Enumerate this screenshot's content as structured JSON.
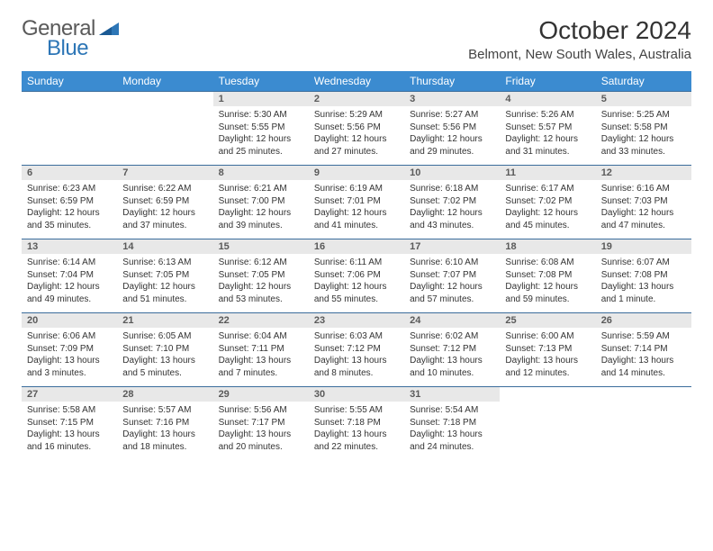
{
  "brand": {
    "general": "General",
    "blue": "Blue"
  },
  "header": {
    "title": "October 2024",
    "location": "Belmont, New South Wales, Australia"
  },
  "colors": {
    "header_bg": "#3b8bd0",
    "header_text": "#ffffff",
    "daynum_bg": "#e8e8e8",
    "daynum_text": "#5a5a5a",
    "row_border": "#3b6d9c",
    "logo_gray": "#5a5a5a",
    "logo_blue": "#2d76b6",
    "text": "#333333",
    "background": "#ffffff"
  },
  "typography": {
    "title_fontsize": 28,
    "location_fontsize": 15,
    "th_fontsize": 12,
    "daynum_fontsize": 11,
    "cell_fontsize": 10,
    "logo_fontsize": 24
  },
  "days": [
    "Sunday",
    "Monday",
    "Tuesday",
    "Wednesday",
    "Thursday",
    "Friday",
    "Saturday"
  ],
  "weeks": [
    [
      null,
      null,
      {
        "n": "1",
        "sr": "Sunrise: 5:30 AM",
        "ss": "Sunset: 5:55 PM",
        "dl1": "Daylight: 12 hours",
        "dl2": "and 25 minutes."
      },
      {
        "n": "2",
        "sr": "Sunrise: 5:29 AM",
        "ss": "Sunset: 5:56 PM",
        "dl1": "Daylight: 12 hours",
        "dl2": "and 27 minutes."
      },
      {
        "n": "3",
        "sr": "Sunrise: 5:27 AM",
        "ss": "Sunset: 5:56 PM",
        "dl1": "Daylight: 12 hours",
        "dl2": "and 29 minutes."
      },
      {
        "n": "4",
        "sr": "Sunrise: 5:26 AM",
        "ss": "Sunset: 5:57 PM",
        "dl1": "Daylight: 12 hours",
        "dl2": "and 31 minutes."
      },
      {
        "n": "5",
        "sr": "Sunrise: 5:25 AM",
        "ss": "Sunset: 5:58 PM",
        "dl1": "Daylight: 12 hours",
        "dl2": "and 33 minutes."
      }
    ],
    [
      {
        "n": "6",
        "sr": "Sunrise: 6:23 AM",
        "ss": "Sunset: 6:59 PM",
        "dl1": "Daylight: 12 hours",
        "dl2": "and 35 minutes."
      },
      {
        "n": "7",
        "sr": "Sunrise: 6:22 AM",
        "ss": "Sunset: 6:59 PM",
        "dl1": "Daylight: 12 hours",
        "dl2": "and 37 minutes."
      },
      {
        "n": "8",
        "sr": "Sunrise: 6:21 AM",
        "ss": "Sunset: 7:00 PM",
        "dl1": "Daylight: 12 hours",
        "dl2": "and 39 minutes."
      },
      {
        "n": "9",
        "sr": "Sunrise: 6:19 AM",
        "ss": "Sunset: 7:01 PM",
        "dl1": "Daylight: 12 hours",
        "dl2": "and 41 minutes."
      },
      {
        "n": "10",
        "sr": "Sunrise: 6:18 AM",
        "ss": "Sunset: 7:02 PM",
        "dl1": "Daylight: 12 hours",
        "dl2": "and 43 minutes."
      },
      {
        "n": "11",
        "sr": "Sunrise: 6:17 AM",
        "ss": "Sunset: 7:02 PM",
        "dl1": "Daylight: 12 hours",
        "dl2": "and 45 minutes."
      },
      {
        "n": "12",
        "sr": "Sunrise: 6:16 AM",
        "ss": "Sunset: 7:03 PM",
        "dl1": "Daylight: 12 hours",
        "dl2": "and 47 minutes."
      }
    ],
    [
      {
        "n": "13",
        "sr": "Sunrise: 6:14 AM",
        "ss": "Sunset: 7:04 PM",
        "dl1": "Daylight: 12 hours",
        "dl2": "and 49 minutes."
      },
      {
        "n": "14",
        "sr": "Sunrise: 6:13 AM",
        "ss": "Sunset: 7:05 PM",
        "dl1": "Daylight: 12 hours",
        "dl2": "and 51 minutes."
      },
      {
        "n": "15",
        "sr": "Sunrise: 6:12 AM",
        "ss": "Sunset: 7:05 PM",
        "dl1": "Daylight: 12 hours",
        "dl2": "and 53 minutes."
      },
      {
        "n": "16",
        "sr": "Sunrise: 6:11 AM",
        "ss": "Sunset: 7:06 PM",
        "dl1": "Daylight: 12 hours",
        "dl2": "and 55 minutes."
      },
      {
        "n": "17",
        "sr": "Sunrise: 6:10 AM",
        "ss": "Sunset: 7:07 PM",
        "dl1": "Daylight: 12 hours",
        "dl2": "and 57 minutes."
      },
      {
        "n": "18",
        "sr": "Sunrise: 6:08 AM",
        "ss": "Sunset: 7:08 PM",
        "dl1": "Daylight: 12 hours",
        "dl2": "and 59 minutes."
      },
      {
        "n": "19",
        "sr": "Sunrise: 6:07 AM",
        "ss": "Sunset: 7:08 PM",
        "dl1": "Daylight: 13 hours",
        "dl2": "and 1 minute."
      }
    ],
    [
      {
        "n": "20",
        "sr": "Sunrise: 6:06 AM",
        "ss": "Sunset: 7:09 PM",
        "dl1": "Daylight: 13 hours",
        "dl2": "and 3 minutes."
      },
      {
        "n": "21",
        "sr": "Sunrise: 6:05 AM",
        "ss": "Sunset: 7:10 PM",
        "dl1": "Daylight: 13 hours",
        "dl2": "and 5 minutes."
      },
      {
        "n": "22",
        "sr": "Sunrise: 6:04 AM",
        "ss": "Sunset: 7:11 PM",
        "dl1": "Daylight: 13 hours",
        "dl2": "and 7 minutes."
      },
      {
        "n": "23",
        "sr": "Sunrise: 6:03 AM",
        "ss": "Sunset: 7:12 PM",
        "dl1": "Daylight: 13 hours",
        "dl2": "and 8 minutes."
      },
      {
        "n": "24",
        "sr": "Sunrise: 6:02 AM",
        "ss": "Sunset: 7:12 PM",
        "dl1": "Daylight: 13 hours",
        "dl2": "and 10 minutes."
      },
      {
        "n": "25",
        "sr": "Sunrise: 6:00 AM",
        "ss": "Sunset: 7:13 PM",
        "dl1": "Daylight: 13 hours",
        "dl2": "and 12 minutes."
      },
      {
        "n": "26",
        "sr": "Sunrise: 5:59 AM",
        "ss": "Sunset: 7:14 PM",
        "dl1": "Daylight: 13 hours",
        "dl2": "and 14 minutes."
      }
    ],
    [
      {
        "n": "27",
        "sr": "Sunrise: 5:58 AM",
        "ss": "Sunset: 7:15 PM",
        "dl1": "Daylight: 13 hours",
        "dl2": "and 16 minutes."
      },
      {
        "n": "28",
        "sr": "Sunrise: 5:57 AM",
        "ss": "Sunset: 7:16 PM",
        "dl1": "Daylight: 13 hours",
        "dl2": "and 18 minutes."
      },
      {
        "n": "29",
        "sr": "Sunrise: 5:56 AM",
        "ss": "Sunset: 7:17 PM",
        "dl1": "Daylight: 13 hours",
        "dl2": "and 20 minutes."
      },
      {
        "n": "30",
        "sr": "Sunrise: 5:55 AM",
        "ss": "Sunset: 7:18 PM",
        "dl1": "Daylight: 13 hours",
        "dl2": "and 22 minutes."
      },
      {
        "n": "31",
        "sr": "Sunrise: 5:54 AM",
        "ss": "Sunset: 7:18 PM",
        "dl1": "Daylight: 13 hours",
        "dl2": "and 24 minutes."
      },
      null,
      null
    ]
  ]
}
